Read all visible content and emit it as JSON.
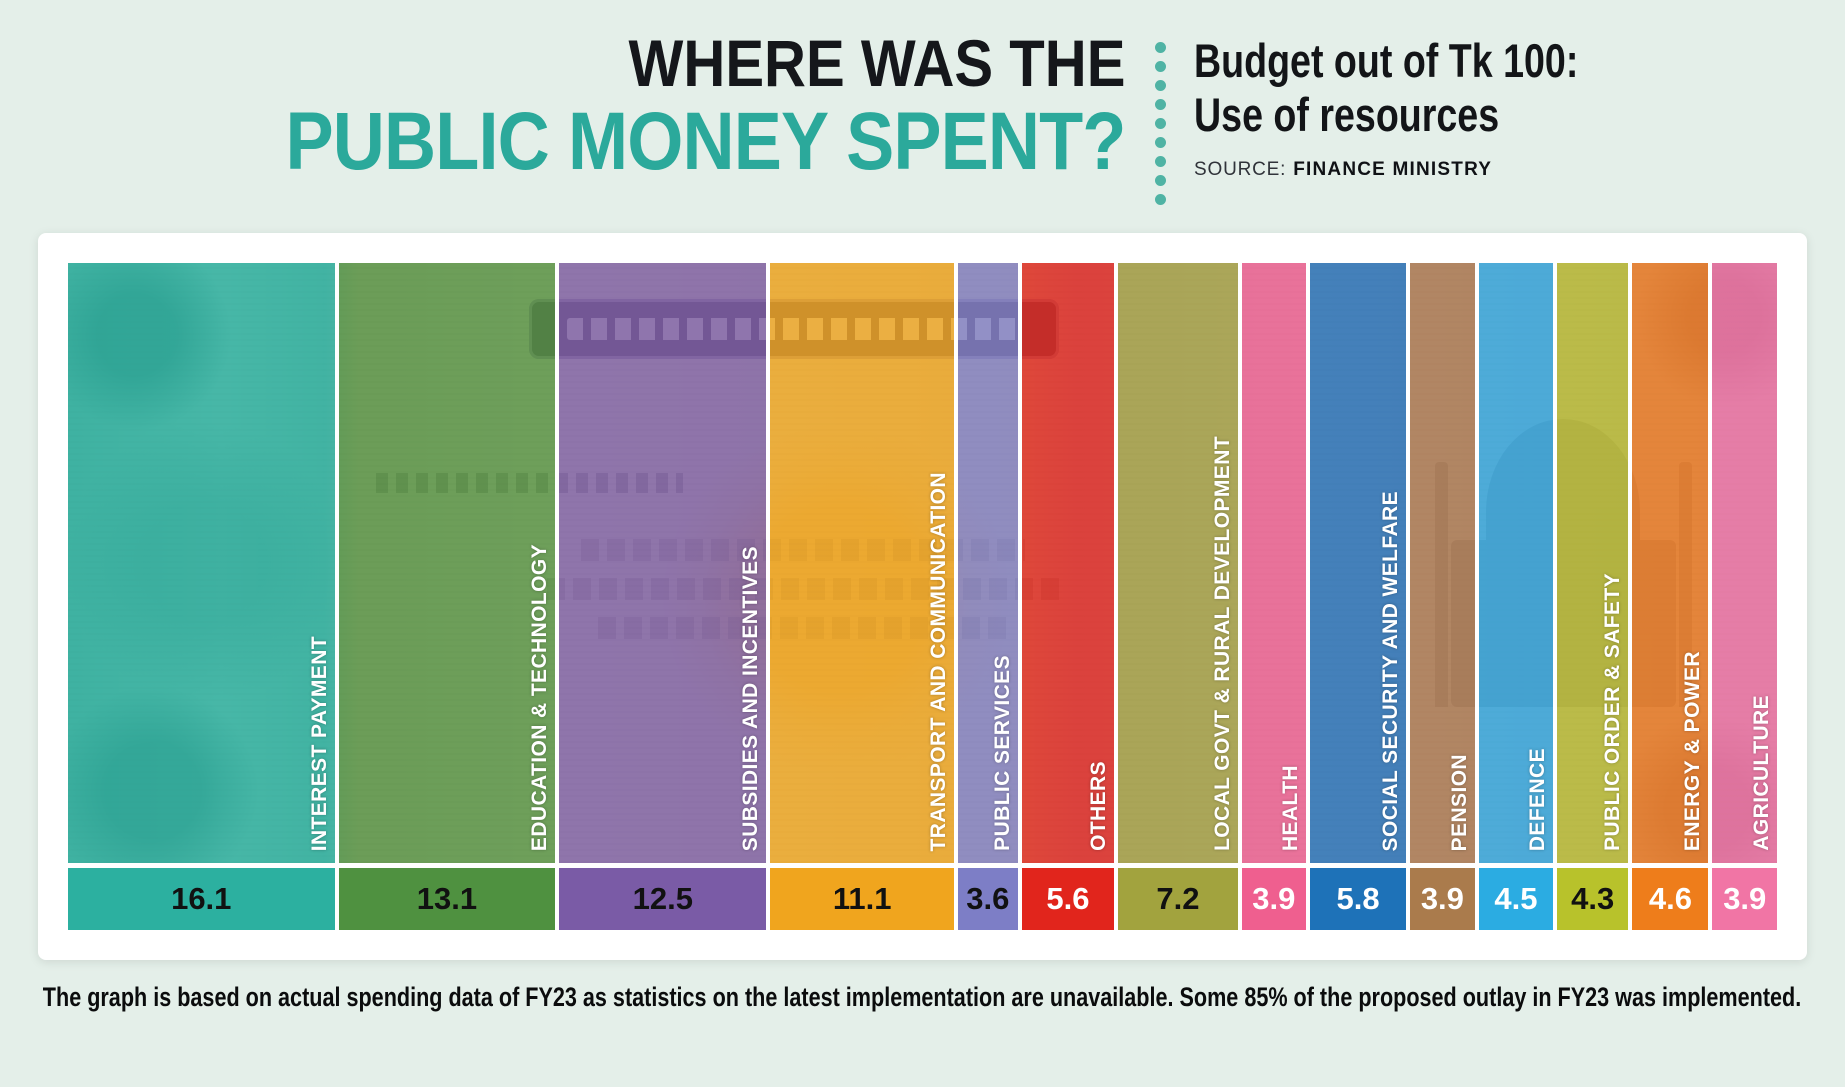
{
  "page": {
    "background": "#e4efe9"
  },
  "header": {
    "title_line1": "WHERE WAS THE",
    "title_line2": "PUBLIC MONEY SPENT?",
    "title_color": "#2ba99b",
    "dot_color": "#4fb3a4",
    "subtitle_line1": "Budget out of Tk 100:",
    "subtitle_line2": "Use of resources",
    "source_label": "SOURCE:",
    "source_value": "FINANCE MINISTRY"
  },
  "chart_data": {
    "type": "bar",
    "title": "Where was the public money spent?",
    "subtitle": "Budget out of Tk 100: Use of resources",
    "orientation": "vertical columns, width proportional to value",
    "unit": "Tk out of 100",
    "background_image": "bangladesh-100-taka-banknote",
    "legend_position": "labels-inside-columns",
    "categories": [
      "INTEREST PAYMENT",
      "EDUCATION & TECHNOLOGY",
      "SUBSIDIES AND INCENTIVES",
      "TRANSPORT AND COMMUNICATION",
      "PUBLIC SERVICES",
      "OTHERS",
      "LOCAL GOVT & RURAL DEVELOPMENT",
      "HEALTH",
      "SOCIAL SECURITY AND WELFARE",
      "PENSION",
      "DEFENCE",
      "PUBLIC ORDER & SAFETY",
      "ENERGY & POWER",
      "AGRICULTURE"
    ],
    "values": [
      16.1,
      13.1,
      12.5,
      11.1,
      3.6,
      5.6,
      7.2,
      3.9,
      5.8,
      3.9,
      4.5,
      4.3,
      4.6,
      3.9
    ],
    "value_labels": [
      "16.1",
      "13.1",
      "12.5",
      "11.1",
      "3.6",
      "5.6",
      "7.2",
      "3.9",
      "5.8",
      "3.9",
      "4.5",
      "4.3",
      "4.6",
      "3.9"
    ],
    "colors": [
      "#2cb0a0",
      "#4f9140",
      "#7a5ba6",
      "#f0a51e",
      "#7d7ec6",
      "#e1251c",
      "#a2a33e",
      "#ef5f8f",
      "#1e72b8",
      "#aa7b4c",
      "#2bace2",
      "#b8c22b",
      "#ee7d1b",
      "#f175a5"
    ],
    "value_text_colors": [
      "#111111",
      "#111111",
      "#111111",
      "#111111",
      "#111111",
      "#ffffff",
      "#111111",
      "#ffffff",
      "#ffffff",
      "#ffffff",
      "#ffffff",
      "#111111",
      "#ffffff",
      "#ffffff"
    ],
    "overlay_alpha": 0.78
  },
  "footer": {
    "note": "The graph is based on actual spending data of FY23 as statistics on the latest implementation are unavailable. Some 85% of the proposed outlay in FY23 was implemented."
  }
}
